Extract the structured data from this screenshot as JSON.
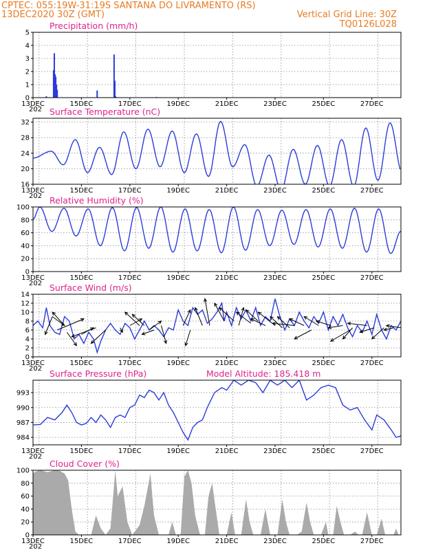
{
  "header": {
    "left_line1": "CPTEC:    055:19W-31:19S   SANTANA DO LIVRAMENTO (RS)",
    "left_line2": "13DEC2020 30Z (GMT)",
    "right_line2": "Vertical Grid Line: 30Z",
    "right_line3": "TQ0126L028"
  },
  "colors": {
    "header": "#e87b22",
    "title": "#e0218a",
    "line": "#2b3bd9",
    "bar": "#2b3bd9",
    "cloud": "#aaaaaa",
    "wind": "#000000"
  },
  "x_axis": {
    "start_day": 13,
    "end_day": 28.2,
    "ticks": [
      {
        "day": 13,
        "label": "13DEC"
      },
      {
        "day": 15,
        "label": "15DEC"
      },
      {
        "day": 17,
        "label": "17DEC"
      },
      {
        "day": 19,
        "label": "19DEC"
      },
      {
        "day": 21,
        "label": "21DEC"
      },
      {
        "day": 23,
        "label": "23DEC"
      },
      {
        "day": 25,
        "label": "25DEC"
      },
      {
        "day": 27,
        "label": "27DEC"
      }
    ],
    "year_fragment": "202"
  },
  "chart_data": [
    {
      "id": "precipitation",
      "type": "bar",
      "title": "Precipitation (mm/h)",
      "ylim": [
        0,
        5
      ],
      "yticks": [
        0,
        1,
        2,
        3,
        4,
        5
      ],
      "points": [
        {
          "day": 13.55,
          "value": 0.1
        },
        {
          "day": 13.85,
          "value": 2.1
        },
        {
          "day": 13.88,
          "value": 3.4
        },
        {
          "day": 13.91,
          "value": 1.8
        },
        {
          "day": 13.94,
          "value": 1.6
        },
        {
          "day": 13.97,
          "value": 1.0
        },
        {
          "day": 14.0,
          "value": 0.6
        },
        {
          "day": 15.65,
          "value": 0.55
        },
        {
          "day": 16.35,
          "value": 3.3
        },
        {
          "day": 16.38,
          "value": 1.3
        },
        {
          "day": 16.41,
          "value": 0.1
        },
        {
          "day": 18.1,
          "value": 0.05
        }
      ]
    },
    {
      "id": "temperature",
      "type": "line",
      "title": "Surface Temperature (nC)",
      "ylim": [
        16,
        33
      ],
      "yticks": [
        16,
        20,
        24,
        28,
        32
      ],
      "diurnal": {
        "phase_day": 0.75,
        "maxima": [
          24.5,
          27.5,
          25.5,
          29.5,
          30.2,
          29.7,
          29.0,
          32.2,
          26.2,
          23.5,
          25.0,
          26.0,
          27.5,
          30.5,
          31.8
        ],
        "minima": [
          21.0,
          19.0,
          18.5,
          20.0,
          20.5,
          19.0,
          18.0,
          20.5,
          15.5,
          14.5,
          16.0,
          15.5,
          15.5,
          17.0,
          19.0
        ]
      }
    },
    {
      "id": "humidity",
      "type": "line",
      "title": "Relative Humidity (%)",
      "ylim": [
        0,
        100
      ],
      "yticks": [
        0,
        20,
        40,
        60,
        80,
        100
      ],
      "diurnal": {
        "phase_day": 0.28,
        "maxima": [
          100,
          98,
          97,
          99,
          99,
          100,
          97,
          96,
          100,
          96,
          95,
          96,
          97,
          98,
          97
        ],
        "minima": [
          62,
          55,
          40,
          32,
          36,
          30,
          32,
          29,
          33,
          40,
          42,
          38,
          36,
          30,
          28
        ]
      }
    },
    {
      "id": "wind",
      "type": "line",
      "title": "Surface Wind (m/s)",
      "ylim": [
        0,
        14
      ],
      "yticks": [
        0,
        2,
        4,
        6,
        8,
        10,
        12,
        14
      ],
      "points": [
        [
          13.0,
          7.0
        ],
        [
          13.2,
          8.0
        ],
        [
          13.4,
          6.5
        ],
        [
          13.55,
          11.0
        ],
        [
          13.7,
          7.0
        ],
        [
          13.9,
          5.5
        ],
        [
          14.1,
          5.0
        ],
        [
          14.3,
          9.0
        ],
        [
          14.5,
          8.0
        ],
        [
          14.7,
          4.0
        ],
        [
          14.9,
          5.0
        ],
        [
          15.1,
          3.0
        ],
        [
          15.3,
          5.5
        ],
        [
          15.5,
          4.0
        ],
        [
          15.65,
          1.0
        ],
        [
          15.8,
          3.5
        ],
        [
          16.0,
          6.0
        ],
        [
          16.2,
          7.5
        ],
        [
          16.4,
          6.0
        ],
        [
          16.6,
          5.0
        ],
        [
          16.8,
          7.5
        ],
        [
          17.0,
          6.5
        ],
        [
          17.2,
          4.0
        ],
        [
          17.4,
          6.0
        ],
        [
          17.6,
          8.0
        ],
        [
          17.8,
          6.0
        ],
        [
          18.0,
          7.0
        ],
        [
          18.2,
          6.0
        ],
        [
          18.4,
          4.5
        ],
        [
          18.6,
          6.5
        ],
        [
          18.8,
          6.0
        ],
        [
          19.0,
          10.5
        ],
        [
          19.2,
          8.0
        ],
        [
          19.4,
          7.0
        ],
        [
          19.6,
          11.0
        ],
        [
          19.8,
          9.5
        ],
        [
          20.0,
          10.5
        ],
        [
          20.2,
          7.5
        ],
        [
          20.4,
          8.5
        ],
        [
          20.6,
          10.0
        ],
        [
          20.8,
          12.0
        ],
        [
          20.9,
          8.0
        ],
        [
          21.0,
          10.0
        ],
        [
          21.2,
          7.0
        ],
        [
          21.4,
          11.0
        ],
        [
          21.6,
          8.5
        ],
        [
          21.8,
          10.5
        ],
        [
          22.0,
          8.0
        ],
        [
          22.2,
          11.0
        ],
        [
          22.4,
          7.0
        ],
        [
          22.6,
          9.0
        ],
        [
          22.8,
          8.0
        ],
        [
          23.0,
          13.0
        ],
        [
          23.2,
          9.0
        ],
        [
          23.4,
          6.0
        ],
        [
          23.6,
          8.5
        ],
        [
          23.8,
          7.0
        ],
        [
          24.0,
          10.0
        ],
        [
          24.2,
          8.0
        ],
        [
          24.4,
          6.5
        ],
        [
          24.6,
          9.0
        ],
        [
          24.8,
          7.5
        ],
        [
          25.0,
          10.0
        ],
        [
          25.2,
          6.0
        ],
        [
          25.4,
          9.0
        ],
        [
          25.6,
          7.0
        ],
        [
          25.8,
          9.5
        ],
        [
          26.0,
          6.5
        ],
        [
          26.2,
          4.5
        ],
        [
          26.4,
          7.0
        ],
        [
          26.6,
          5.5
        ],
        [
          26.8,
          8.0
        ],
        [
          27.0,
          5.0
        ],
        [
          27.2,
          9.5
        ],
        [
          27.4,
          6.0
        ],
        [
          27.6,
          4.0
        ],
        [
          27.8,
          7.0
        ],
        [
          28.0,
          6.0
        ],
        [
          28.2,
          8.0
        ]
      ],
      "arrows": [
        [
          13.8,
          9.0,
          14.3,
          7.0
        ],
        [
          13.8,
          9.0,
          13.5,
          5.0
        ],
        [
          14.3,
          7.0,
          13.8,
          10.0
        ],
        [
          14.0,
          6.0,
          15.1,
          8.5
        ],
        [
          14.4,
          5.5,
          14.8,
          2.5
        ],
        [
          15.0,
          5.0,
          15.5,
          6.5
        ],
        [
          15.6,
          6.5,
          14.6,
          4.5
        ],
        [
          16.0,
          6.0,
          15.4,
          3.0
        ],
        [
          16.6,
          6.5,
          16.7,
          5.5
        ],
        [
          17.0,
          7.0,
          17.5,
          8.5
        ],
        [
          17.4,
          7.0,
          16.8,
          10.0
        ],
        [
          17.6,
          7.0,
          17.1,
          9.5
        ],
        [
          17.8,
          6.0,
          18.3,
          8.0
        ],
        [
          18.0,
          6.0,
          17.5,
          5.0
        ],
        [
          18.3,
          7.0,
          18.5,
          3.0
        ],
        [
          19.2,
          7.0,
          19.5,
          10.5
        ],
        [
          19.5,
          6.0,
          19.3,
          2.5
        ],
        [
          20.0,
          7.0,
          19.7,
          11.0
        ],
        [
          20.3,
          7.0,
          20.1,
          13.0
        ],
        [
          20.9,
          8.0,
          20.5,
          12.0
        ],
        [
          21.3,
          8.0,
          20.7,
          11.0
        ],
        [
          21.5,
          7.0,
          21.7,
          11.0
        ],
        [
          22.0,
          7.5,
          21.4,
          10.0
        ],
        [
          22.3,
          8.0,
          21.8,
          10.5
        ],
        [
          22.6,
          7.0,
          22.0,
          8.5
        ],
        [
          23.0,
          7.0,
          22.3,
          10.0
        ],
        [
          23.3,
          6.5,
          22.8,
          9.0
        ],
        [
          23.6,
          6.5,
          23.1,
          9.0
        ],
        [
          23.8,
          7.0,
          22.9,
          7.5
        ],
        [
          24.2,
          7.0,
          23.6,
          8.5
        ],
        [
          24.5,
          6.0,
          23.8,
          4.0
        ],
        [
          24.8,
          7.0,
          24.2,
          9.0
        ],
        [
          25.3,
          7.0,
          24.7,
          8.0
        ],
        [
          25.8,
          7.0,
          25.2,
          6.5
        ],
        [
          26.1,
          6.0,
          25.3,
          3.5
        ],
        [
          26.2,
          6.5,
          25.8,
          4.0
        ],
        [
          26.8,
          7.0,
          26.0,
          7.5
        ],
        [
          27.1,
          6.5,
          26.5,
          5.5
        ],
        [
          27.5,
          6.5,
          27.0,
          4.0
        ],
        [
          27.9,
          6.5,
          27.5,
          6.0
        ],
        [
          28.2,
          6.5,
          27.6,
          7.0
        ]
      ]
    },
    {
      "id": "pressure",
      "type": "line",
      "title": "Surface Pressure (hPa)",
      "annotation": "Model Altitude: 185.418 m",
      "ylim": [
        982.5,
        995.5
      ],
      "yticks": [
        984,
        987,
        990,
        993
      ],
      "points": [
        [
          13.0,
          986.5
        ],
        [
          13.3,
          986.6
        ],
        [
          13.6,
          988.0
        ],
        [
          13.9,
          987.5
        ],
        [
          14.2,
          989.0
        ],
        [
          14.4,
          990.5
        ],
        [
          14.6,
          989.0
        ],
        [
          14.8,
          987.0
        ],
        [
          15.0,
          986.5
        ],
        [
          15.2,
          986.8
        ],
        [
          15.4,
          988.0
        ],
        [
          15.6,
          987.0
        ],
        [
          15.8,
          988.5
        ],
        [
          16.0,
          987.5
        ],
        [
          16.2,
          986.0
        ],
        [
          16.4,
          988.0
        ],
        [
          16.6,
          988.5
        ],
        [
          16.8,
          988.0
        ],
        [
          17.0,
          990.0
        ],
        [
          17.2,
          990.5
        ],
        [
          17.4,
          992.5
        ],
        [
          17.6,
          992.0
        ],
        [
          17.8,
          993.5
        ],
        [
          18.0,
          993.0
        ],
        [
          18.2,
          991.5
        ],
        [
          18.4,
          993.0
        ],
        [
          18.6,
          990.5
        ],
        [
          18.8,
          989.0
        ],
        [
          19.0,
          987.0
        ],
        [
          19.2,
          985.0
        ],
        [
          19.4,
          983.5
        ],
        [
          19.6,
          986.0
        ],
        [
          19.8,
          987.0
        ],
        [
          20.0,
          987.5
        ],
        [
          20.2,
          990.0
        ],
        [
          20.5,
          993.0
        ],
        [
          20.8,
          994.0
        ],
        [
          21.0,
          993.5
        ],
        [
          21.3,
          995.5
        ],
        [
          21.6,
          994.5
        ],
        [
          21.9,
          995.5
        ],
        [
          22.2,
          995.0
        ],
        [
          22.5,
          993.0
        ],
        [
          22.8,
          995.5
        ],
        [
          23.1,
          994.5
        ],
        [
          23.4,
          995.5
        ],
        [
          23.7,
          994.0
        ],
        [
          24.0,
          995.5
        ],
        [
          24.3,
          991.5
        ],
        [
          24.6,
          992.5
        ],
        [
          24.9,
          994.0
        ],
        [
          25.2,
          994.5
        ],
        [
          25.5,
          994.0
        ],
        [
          25.8,
          990.5
        ],
        [
          26.1,
          989.5
        ],
        [
          26.4,
          990.0
        ],
        [
          26.7,
          987.5
        ],
        [
          27.0,
          985.5
        ],
        [
          27.2,
          988.5
        ],
        [
          27.5,
          987.5
        ],
        [
          27.8,
          985.5
        ],
        [
          28.0,
          984.0
        ],
        [
          28.2,
          984.3
        ]
      ]
    },
    {
      "id": "cloud",
      "type": "area",
      "title": "Cloud Cover (%)",
      "ylim": [
        0,
        100
      ],
      "yticks": [
        0,
        20,
        40,
        60,
        80,
        100
      ],
      "points": [
        [
          13.0,
          95
        ],
        [
          13.1,
          98
        ],
        [
          13.3,
          100
        ],
        [
          13.6,
          97
        ],
        [
          13.9,
          100
        ],
        [
          14.1,
          99
        ],
        [
          14.3,
          95
        ],
        [
          14.45,
          85
        ],
        [
          14.6,
          40
        ],
        [
          14.75,
          5
        ],
        [
          14.9,
          0
        ],
        [
          15.4,
          0
        ],
        [
          15.6,
          30
        ],
        [
          15.8,
          10
        ],
        [
          16.0,
          0
        ],
        [
          16.2,
          10
        ],
        [
          16.4,
          100
        ],
        [
          16.5,
          60
        ],
        [
          16.7,
          75
        ],
        [
          16.9,
          20
        ],
        [
          17.1,
          0
        ],
        [
          17.4,
          15
        ],
        [
          17.6,
          45
        ],
        [
          17.85,
          95
        ],
        [
          18.0,
          30
        ],
        [
          18.2,
          0
        ],
        [
          18.6,
          0
        ],
        [
          18.75,
          20
        ],
        [
          18.9,
          0
        ],
        [
          19.1,
          0
        ],
        [
          19.25,
          90
        ],
        [
          19.4,
          100
        ],
        [
          19.55,
          80
        ],
        [
          19.7,
          30
        ],
        [
          19.9,
          0
        ],
        [
          20.1,
          0
        ],
        [
          20.25,
          60
        ],
        [
          20.4,
          80
        ],
        [
          20.55,
          40
        ],
        [
          20.7,
          0
        ],
        [
          21.0,
          0
        ],
        [
          21.2,
          35
        ],
        [
          21.35,
          0
        ],
        [
          21.6,
          0
        ],
        [
          21.8,
          55
        ],
        [
          21.95,
          20
        ],
        [
          22.1,
          0
        ],
        [
          22.4,
          0
        ],
        [
          22.6,
          40
        ],
        [
          22.8,
          0
        ],
        [
          23.1,
          0
        ],
        [
          23.3,
          55
        ],
        [
          23.45,
          20
        ],
        [
          23.6,
          0
        ],
        [
          23.9,
          0
        ],
        [
          24.1,
          5
        ],
        [
          24.3,
          50
        ],
        [
          24.45,
          20
        ],
        [
          24.6,
          0
        ],
        [
          24.9,
          0
        ],
        [
          25.1,
          20
        ],
        [
          25.2,
          0
        ],
        [
          25.4,
          0
        ],
        [
          25.55,
          45
        ],
        [
          25.7,
          20
        ],
        [
          25.85,
          0
        ],
        [
          26.1,
          0
        ],
        [
          26.3,
          5
        ],
        [
          26.45,
          0
        ],
        [
          26.6,
          0
        ],
        [
          26.8,
          35
        ],
        [
          27.0,
          0
        ],
        [
          27.2,
          0
        ],
        [
          27.4,
          25
        ],
        [
          27.55,
          0
        ],
        [
          27.9,
          0
        ],
        [
          28.0,
          10
        ],
        [
          28.1,
          0
        ],
        [
          28.2,
          0
        ]
      ]
    }
  ]
}
